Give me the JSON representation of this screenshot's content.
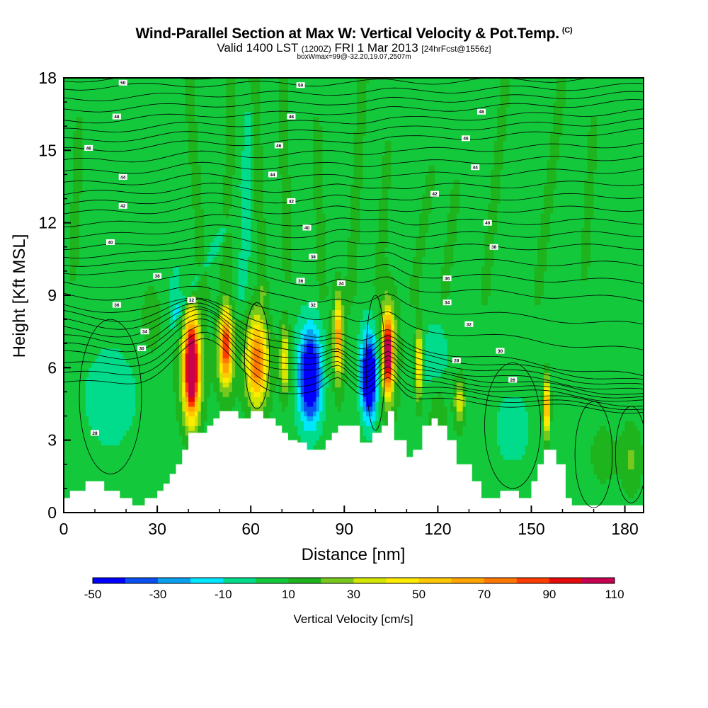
{
  "header": {
    "title": "Wind-Parallel Section at Max W: Vertical Velocity & Pot.Temp.",
    "title_mark": "(C)",
    "valid_prefix": "Valid 1400 LST",
    "valid_zulu": "(1200Z)",
    "valid_date": "FRI 1 Mar 2013",
    "forecast": "[24hrFcst@1556z]",
    "box_info": "boxWmax=99@-32.20,19.07,2507m"
  },
  "chart_data": {
    "type": "heatmap",
    "xlabel": "Distance [nm]",
    "ylabel": "Height [Kft MSL]",
    "xlim": [
      0,
      186
    ],
    "ylim": [
      0,
      18
    ],
    "xticks": [
      0,
      30,
      60,
      90,
      120,
      150,
      180
    ],
    "yticks": [
      0,
      3,
      6,
      9,
      12,
      15,
      18
    ],
    "colorbar": {
      "label": "Vertical Velocity [cm/s]",
      "levels": [
        -50,
        -40,
        -30,
        -20,
        -10,
        0,
        10,
        20,
        30,
        40,
        50,
        60,
        70,
        80,
        90,
        100,
        110
      ],
      "tick_labels": [
        "-50",
        "-30",
        "-10",
        "10",
        "30",
        "50",
        "70",
        "90",
        "110"
      ],
      "colors": [
        "#0000ff",
        "#0a50f0",
        "#0aa0f0",
        "#00e6ff",
        "#00dc8c",
        "#14c83c",
        "#1eb41e",
        "#78c81e",
        "#d2e600",
        "#ffeb00",
        "#ffc800",
        "#ffa500",
        "#ff7800",
        "#ff3c00",
        "#e60a0a",
        "#c80050"
      ]
    },
    "terrain": {
      "x": [
        0,
        2,
        2,
        7,
        7,
        13,
        13,
        18,
        18,
        22,
        22,
        26,
        26,
        30,
        30,
        32,
        32,
        34,
        34,
        36,
        36,
        38,
        38,
        40,
        40,
        46,
        46,
        48,
        48,
        50,
        50,
        56,
        56,
        60,
        60,
        64,
        64,
        68,
        68,
        70,
        70,
        72,
        72,
        75,
        75,
        78,
        78,
        84,
        84,
        86,
        86,
        88,
        88,
        95,
        95,
        99,
        99,
        102,
        102,
        104,
        104,
        106,
        106,
        110,
        110,
        112,
        112,
        115,
        115,
        118,
        118,
        120,
        120,
        123,
        123,
        126,
        126,
        131,
        131,
        134,
        134,
        140,
        140,
        146,
        146,
        150,
        150,
        152,
        152,
        154,
        154,
        158,
        158,
        161,
        161,
        163,
        163,
        186
      ],
      "h": [
        0.6,
        0.6,
        0.9,
        0.9,
        1.3,
        1.3,
        0.9,
        0.9,
        0.6,
        0.6,
        0.3,
        0.3,
        0.6,
        0.6,
        0.9,
        0.9,
        1.2,
        1.2,
        1.6,
        1.6,
        2.0,
        2.0,
        2.6,
        2.6,
        3.3,
        3.3,
        3.6,
        3.6,
        3.9,
        3.9,
        4.2,
        4.2,
        3.9,
        3.9,
        4.2,
        4.2,
        3.9,
        3.9,
        3.6,
        3.6,
        3.3,
        3.3,
        3.0,
        3.0,
        2.9,
        2.9,
        2.6,
        2.6,
        3.0,
        3.0,
        3.3,
        3.3,
        3.6,
        3.6,
        2.9,
        2.9,
        3.3,
        3.3,
        3.6,
        3.6,
        4.2,
        4.2,
        3.0,
        3.0,
        2.3,
        2.3,
        2.6,
        2.6,
        3.6,
        3.6,
        3.9,
        3.9,
        3.6,
        3.6,
        3.0,
        3.0,
        2.0,
        2.0,
        1.3,
        1.3,
        0.6,
        0.6,
        0.9,
        0.9,
        0.6,
        0.6,
        1.3,
        1.3,
        2.0,
        2.0,
        2.6,
        2.6,
        2.0,
        2.0,
        0.6,
        0.6,
        0.3,
        0.3
      ]
    },
    "theta_contours": [
      {
        "label": "30",
        "y_left": 5.4,
        "bump": 2.2,
        "y_right": 4.2
      },
      {
        "label": "32",
        "y_left": 6.6,
        "bump": 2.0,
        "y_right": 4.6
      },
      {
        "label": "34",
        "y_left": 7.6,
        "bump": 1.7,
        "y_right": 5.0
      },
      {
        "label": "36",
        "y_left": 8.6,
        "bump": 1.2,
        "y_right": 5.6
      },
      {
        "label": "38",
        "y_left": 10.0,
        "bump": 0.8,
        "y_right": 8.8
      },
      {
        "label": "40",
        "y_left": 11.0,
        "bump": 0.5,
        "y_right": 11.0
      },
      {
        "label": "42",
        "y_left": 12.4,
        "bump": 0.3,
        "y_right": 12.6
      },
      {
        "label": "44",
        "y_left": 13.6,
        "bump": 0.2,
        "y_right": 14.2
      },
      {
        "label": "46",
        "y_left": 15.0,
        "bump": 0.15,
        "y_right": 15.8
      },
      {
        "label": "48",
        "y_left": 16.2,
        "bump": 0.1,
        "y_right": 17.0
      },
      {
        "label": "50",
        "y_left": 17.6,
        "bump": 0.05,
        "y_right": 18.0
      }
    ],
    "contour_labels": [
      {
        "text": "50",
        "x": 19,
        "y": 17.8
      },
      {
        "text": "50",
        "x": 76,
        "y": 17.7
      },
      {
        "text": "48",
        "x": 17,
        "y": 16.4
      },
      {
        "text": "48",
        "x": 73,
        "y": 16.4
      },
      {
        "text": "48",
        "x": 134,
        "y": 16.6
      },
      {
        "text": "46",
        "x": 8,
        "y": 15.1
      },
      {
        "text": "46",
        "x": 69,
        "y": 15.2
      },
      {
        "text": "46",
        "x": 129,
        "y": 15.5
      },
      {
        "text": "44",
        "x": 19,
        "y": 13.9
      },
      {
        "text": "44",
        "x": 67,
        "y": 14.0
      },
      {
        "text": "44",
        "x": 132,
        "y": 14.3
      },
      {
        "text": "42",
        "x": 19,
        "y": 12.7
      },
      {
        "text": "42",
        "x": 73,
        "y": 12.9
      },
      {
        "text": "42",
        "x": 119,
        "y": 13.2
      },
      {
        "text": "40",
        "x": 15,
        "y": 11.2
      },
      {
        "text": "40",
        "x": 78,
        "y": 11.8
      },
      {
        "text": "40",
        "x": 136,
        "y": 12.0
      },
      {
        "text": "38",
        "x": 30,
        "y": 9.8
      },
      {
        "text": "38",
        "x": 80,
        "y": 10.6
      },
      {
        "text": "38",
        "x": 138,
        "y": 11.0
      },
      {
        "text": "36",
        "x": 17,
        "y": 8.6
      },
      {
        "text": "36",
        "x": 76,
        "y": 9.6
      },
      {
        "text": "36",
        "x": 123,
        "y": 9.7
      },
      {
        "text": "34",
        "x": 26,
        "y": 7.5
      },
      {
        "text": "34",
        "x": 89,
        "y": 9.5
      },
      {
        "text": "34",
        "x": 123,
        "y": 8.7
      },
      {
        "text": "32",
        "x": 41,
        "y": 8.8
      },
      {
        "text": "32",
        "x": 80,
        "y": 8.6
      },
      {
        "text": "32",
        "x": 130,
        "y": 7.8
      },
      {
        "text": "30",
        "x": 25,
        "y": 6.8
      },
      {
        "text": "30",
        "x": 140,
        "y": 6.7
      },
      {
        "text": "28",
        "x": 126,
        "y": 6.3
      },
      {
        "text": "26",
        "x": 144,
        "y": 5.5
      },
      {
        "text": "28",
        "x": 10,
        "y": 3.3
      }
    ],
    "features": [
      {
        "x": 41,
        "y": 6.0,
        "sx": 2.2,
        "sy": 1.9,
        "w": 115
      },
      {
        "x": 41,
        "y": 6.0,
        "sx": 4.5,
        "sy": 2.5,
        "w": 25
      },
      {
        "x": 52,
        "y": 6.9,
        "sx": 2.0,
        "sy": 1.5,
        "w": 75
      },
      {
        "x": 52,
        "y": 6.5,
        "sx": 3.5,
        "sy": 2.2,
        "w": 12
      },
      {
        "x": 62,
        "y": 6.3,
        "sx": 3.3,
        "sy": 1.7,
        "w": 65
      },
      {
        "x": 62,
        "y": 6.0,
        "sx": 5.0,
        "sy": 2.3,
        "w": 10
      },
      {
        "x": 71,
        "y": 6.3,
        "sx": 1.6,
        "sy": 1.5,
        "w": 40
      },
      {
        "x": 79,
        "y": 5.6,
        "sx": 3.0,
        "sy": 1.6,
        "w": -62
      },
      {
        "x": 79,
        "y": 5.8,
        "sx": 5.0,
        "sy": 2.4,
        "w": -18
      },
      {
        "x": 88,
        "y": 7.3,
        "sx": 1.3,
        "sy": 1.5,
        "w": 50
      },
      {
        "x": 88,
        "y": 7.0,
        "sx": 2.8,
        "sy": 2.4,
        "w": 15
      },
      {
        "x": 98,
        "y": 5.6,
        "sx": 2.2,
        "sy": 1.4,
        "w": -70
      },
      {
        "x": 98,
        "y": 5.8,
        "sx": 3.8,
        "sy": 2.2,
        "w": -22
      },
      {
        "x": 104,
        "y": 6.6,
        "sx": 1.6,
        "sy": 1.5,
        "w": 95
      },
      {
        "x": 104,
        "y": 6.8,
        "sx": 3.5,
        "sy": 2.5,
        "w": 22
      },
      {
        "x": 114,
        "y": 6.2,
        "sx": 1.2,
        "sy": 1.5,
        "w": 50
      },
      {
        "x": 119,
        "y": 6.3,
        "sx": 4.5,
        "sy": 1.5,
        "w": -14
      },
      {
        "x": 127,
        "y": 4.6,
        "sx": 1.8,
        "sy": 1.0,
        "w": 32
      },
      {
        "x": 155,
        "y": 4.4,
        "sx": 1.0,
        "sy": 1.2,
        "w": 65
      },
      {
        "x": 15,
        "y": 4.8,
        "sx": 8.0,
        "sy": 2.0,
        "w": -14
      },
      {
        "x": 144,
        "y": 3.5,
        "sx": 5.5,
        "sy": 1.4,
        "w": -13
      },
      {
        "x": 173,
        "y": 2.4,
        "sx": 4.0,
        "sy": 1.2,
        "w": 12
      },
      {
        "x": 182,
        "y": 2.2,
        "sx": 3.5,
        "sy": 1.5,
        "w": 16
      },
      {
        "x": 36,
        "y": 9.0,
        "sx": 2.0,
        "sy": 1.2,
        "w": -14
      },
      {
        "x": 28,
        "y": 8.0,
        "sx": 3.0,
        "sy": 1.4,
        "w": 13
      },
      {
        "x": 100,
        "y": 5.0,
        "sx": 10.0,
        "sy": 3.0,
        "w": 3
      },
      {
        "x": 120,
        "y": 4.0,
        "sx": 3.0,
        "sy": 1.8,
        "w": 14
      }
    ],
    "streaks": [
      {
        "x0": 35,
        "x1": 53,
        "y0": 8.0,
        "y1": 12.0,
        "w": -14
      },
      {
        "x0": 57,
        "x1": 59,
        "y0": 9.0,
        "y1": 12.5,
        "w": -13
      },
      {
        "x0": 58,
        "x1": 60,
        "y0": 13.5,
        "y1": 16.5,
        "w": -13
      },
      {
        "x0": 45,
        "x1": 40,
        "y0": 9.0,
        "y1": 18.0,
        "w": 12
      },
      {
        "x0": 52,
        "x1": 54,
        "y0": 10.0,
        "y1": 18.0,
        "w": 12
      },
      {
        "x0": 64,
        "x1": 61,
        "y0": 9.0,
        "y1": 18.0,
        "w": 13
      },
      {
        "x0": 72,
        "x1": 70,
        "y0": 10.0,
        "y1": 18.0,
        "w": 12
      },
      {
        "x0": 83,
        "x1": 81,
        "y0": 9.0,
        "y1": 16.0,
        "w": 12
      },
      {
        "x0": 92,
        "x1": 96,
        "y0": 9.0,
        "y1": 18.0,
        "w": 13
      },
      {
        "x0": 101,
        "x1": 104,
        "y0": 9.5,
        "y1": 15.0,
        "w": 11
      },
      {
        "x0": 112,
        "x1": 118,
        "y0": 9.0,
        "y1": 14.0,
        "w": 12
      },
      {
        "x0": 122,
        "x1": 126,
        "y0": 9.0,
        "y1": 13.5,
        "w": 12
      },
      {
        "x0": 135,
        "x1": 142,
        "y0": 9.0,
        "y1": 18.0,
        "w": 12
      },
      {
        "x0": 152,
        "x1": 160,
        "y0": 9.0,
        "y1": 18.0,
        "w": 13
      },
      {
        "x0": 167,
        "x1": 170,
        "y0": 10.0,
        "y1": 16.0,
        "w": 11
      },
      {
        "x0": 3,
        "x1": 5,
        "y0": 10.0,
        "y1": 16.0,
        "w": 11
      }
    ]
  }
}
